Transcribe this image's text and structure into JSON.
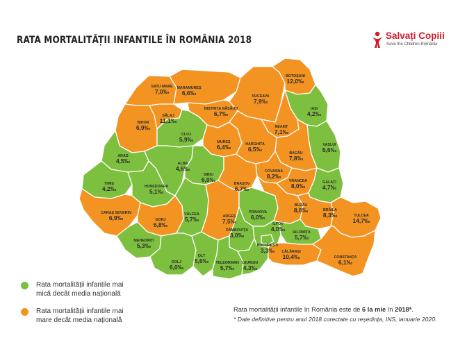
{
  "title": "RATA MORTALITĂȚII INFANTILE ÎN ROMÂNIA 2018",
  "logo": {
    "name": "Salvați Copiii",
    "sub": "Save the Children România",
    "icon": "save-the-children-icon"
  },
  "colors": {
    "below": "#7dbf3f",
    "above": "#f29322",
    "border": "#ffffff",
    "brand": "#d11a2a"
  },
  "legend": [
    {
      "text1": "Rata mortalității infantile mai",
      "text2": "mică decât media națională",
      "color": "#7dbf3f"
    },
    {
      "text1": "Rata mortalității infantile mai",
      "text2": "mare decât media națională",
      "color": "#f29322"
    }
  ],
  "note": {
    "prefix": "Rata mortalității infantile în România este de ",
    "bold1": "6 la mie",
    "mid": " în ",
    "bold2": "2018*",
    "suffix": "."
  },
  "footnote": "* Date definitive pentru anul 2018 corectate cu reședința, INS, ianuarie 2020.",
  "counties": [
    {
      "name": "SATU MARE",
      "value": "7,0‰"
    },
    {
      "name": "MARAMUREȘ",
      "value": "6,6‰"
    },
    {
      "name": "BOTOȘANI",
      "value": "12,0‰"
    },
    {
      "name": "SUCEAVA",
      "value": "7,9‰"
    },
    {
      "name": "IAȘI",
      "value": "4,2‰"
    },
    {
      "name": "BIHOR",
      "value": "6,9‰"
    },
    {
      "name": "SĂLAJ",
      "value": "11,1‰"
    },
    {
      "name": "BISTRIȚA NĂSĂUD",
      "value": "6,7‰"
    },
    {
      "name": "NEAMȚ",
      "value": "7,1‰"
    },
    {
      "name": "CLUJ",
      "value": "5,9‰"
    },
    {
      "name": "MUREȘ",
      "value": "6,4‰"
    },
    {
      "name": "HARGHITA",
      "value": "6,5‰"
    },
    {
      "name": "BACĂU",
      "value": "7,8‰"
    },
    {
      "name": "VASLUI",
      "value": "5,6‰"
    },
    {
      "name": "ARAD",
      "value": "4,5‰"
    },
    {
      "name": "ALBA",
      "value": "4,6‰"
    },
    {
      "name": "COVASNA",
      "value": "8,2‰"
    },
    {
      "name": "SIBIU",
      "value": "6,0‰"
    },
    {
      "name": "BRAȘOV",
      "value": "6,7‰"
    },
    {
      "name": "VRANCEA",
      "value": "8,0‰"
    },
    {
      "name": "GALAȚI",
      "value": "4,7‰"
    },
    {
      "name": "TIMIȘ",
      "value": "4,2‰"
    },
    {
      "name": "HUNEDOARA",
      "value": "5,1‰"
    },
    {
      "name": "BUZĂU",
      "value": "8,8‰"
    },
    {
      "name": "BRĂILA",
      "value": "8,3‰"
    },
    {
      "name": "TULCEA",
      "value": "14,7‰"
    },
    {
      "name": "CARAȘ SEVERIN",
      "value": "6,9‰"
    },
    {
      "name": "GORJ",
      "value": "6,8‰"
    },
    {
      "name": "VÂLCEA",
      "value": "5,7‰"
    },
    {
      "name": "ARGEȘ",
      "value": "7,5‰"
    },
    {
      "name": "PRAHOVA",
      "value": "6,0‰"
    },
    {
      "name": "DÂMBOVIȚA",
      "value": "3,0‰"
    },
    {
      "name": "ILFOV",
      "value": "4,0‰"
    },
    {
      "name": "IALOMIȚA",
      "value": "5,7‰"
    },
    {
      "name": "BUCUREȘTI",
      "value": "3,3‰"
    },
    {
      "name": "MEHEDINȚI",
      "value": "5,3‰"
    },
    {
      "name": "CĂLĂRAȘI",
      "value": "10,4‰"
    },
    {
      "name": "CONSTANȚA",
      "value": "6,1‰"
    },
    {
      "name": "DOLJ",
      "value": "6,0‰"
    },
    {
      "name": "OLT",
      "value": "5,6‰"
    },
    {
      "name": "TELEORMAN",
      "value": "5,7‰"
    },
    {
      "name": "GIURGIU",
      "value": "4,3‰"
    }
  ]
}
